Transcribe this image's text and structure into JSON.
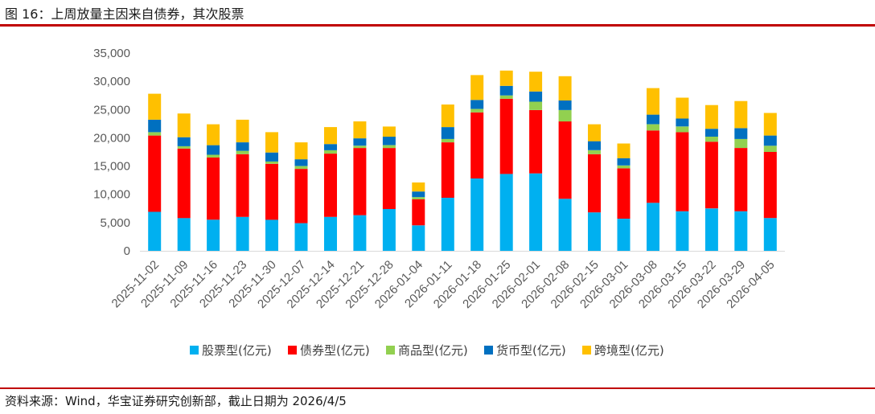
{
  "figure_title": "图 16：上周放量主因来自债券，其次股票",
  "source": "资料来源：Wind，华宝证券研究创新部，截止日期为 2026/4/5",
  "colors": {
    "rule": "#c00000",
    "stock": "#00b0f0",
    "bond": "#ff0000",
    "commodity": "#92d050",
    "money": "#0070c0",
    "cross": "#ffc000"
  },
  "chart_data": {
    "type": "bar",
    "stacked": true,
    "categories": [
      "2025-11-02",
      "2025-11-09",
      "2025-11-16",
      "2025-11-23",
      "2025-11-30",
      "2025-12-07",
      "2025-12-14",
      "2025-12-21",
      "2025-12-28",
      "2026-01-04",
      "2026-01-11",
      "2026-01-18",
      "2026-01-25",
      "2026-02-01",
      "2026-02-08",
      "2026-02-15",
      "2026-03-01",
      "2026-03-08",
      "2026-03-15",
      "2026-03-22",
      "2026-03-29",
      "2026-04-05"
    ],
    "series": [
      {
        "name": "股票型(亿元)",
        "color": "#00b0f0",
        "values": [
          6900,
          5800,
          5500,
          6000,
          5500,
          4900,
          6000,
          6300,
          7400,
          4500,
          9400,
          12800,
          13600,
          13700,
          9200,
          6800,
          5700,
          8500,
          7000,
          7500,
          7000,
          5800
        ]
      },
      {
        "name": "债券型(亿元)",
        "color": "#ff0000",
        "values": [
          13500,
          12300,
          11000,
          11100,
          9900,
          9600,
          11200,
          11900,
          10800,
          4600,
          9800,
          11700,
          13300,
          11200,
          13700,
          10300,
          8900,
          12800,
          14000,
          11800,
          11200,
          11700
        ]
      },
      {
        "name": "商品型(亿元)",
        "color": "#92d050",
        "values": [
          600,
          400,
          500,
          600,
          400,
          500,
          600,
          400,
          500,
          400,
          600,
          600,
          600,
          1500,
          2000,
          700,
          500,
          1100,
          1000,
          900,
          1600,
          1100
        ]
      },
      {
        "name": "货币型(亿元)",
        "color": "#0070c0",
        "values": [
          2200,
          1600,
          1700,
          1500,
          1600,
          1200,
          1100,
          1300,
          1500,
          1000,
          2100,
          1600,
          1700,
          1800,
          1700,
          1600,
          1300,
          1700,
          1400,
          1400,
          1900,
          1800
        ]
      },
      {
        "name": "跨境型(亿元)",
        "color": "#ffc000",
        "values": [
          4600,
          4200,
          3700,
          4000,
          3600,
          3000,
          3000,
          3000,
          1800,
          1600,
          4000,
          4400,
          2700,
          3500,
          4300,
          3000,
          2600,
          4700,
          3700,
          4200,
          4800,
          4000
        ]
      }
    ],
    "ylim": [
      0,
      35000
    ],
    "yticks": [
      "0",
      "5,000",
      "10,000",
      "15,000",
      "20,000",
      "25,000",
      "30,000",
      "35,000"
    ],
    "xlabel": "",
    "ylabel": "",
    "grid": false,
    "legend_position": "bottom"
  }
}
